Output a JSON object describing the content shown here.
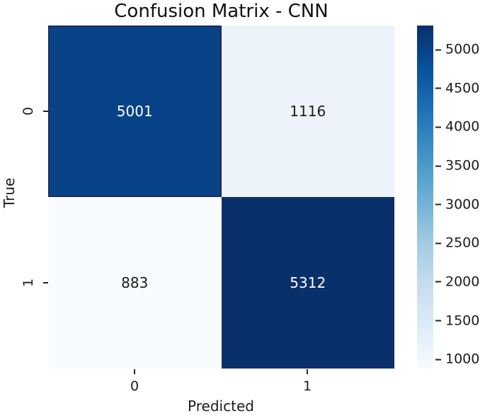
{
  "chart_data": {
    "type": "heatmap",
    "title": "Confusion Matrix - CNN",
    "xlabel": "Predicted",
    "ylabel": "True",
    "x_tick_labels": [
      "0",
      "1"
    ],
    "y_tick_labels": [
      "0",
      "1"
    ],
    "matrix": [
      [
        5001,
        1116
      ],
      [
        883,
        5312
      ]
    ],
    "vmin": 883,
    "vmax": 5312,
    "colormap_name": "Blues",
    "colormap_stops": [
      "#f7fbff",
      "#deebf7",
      "#c6dbef",
      "#9ecae1",
      "#6baed6",
      "#4292c6",
      "#2171b5",
      "#08519c",
      "#08306b"
    ],
    "cell_colors": [
      [
        "#084387",
        "#edf3fb"
      ],
      [
        "#f7fbff",
        "#08306b"
      ]
    ],
    "cell_text_colors": [
      [
        "#ffffff",
        "#1c1c1c"
      ],
      [
        "#1c1c1c",
        "#ffffff"
      ]
    ],
    "colorbar_ticks": [
      1000,
      1500,
      2000,
      2500,
      3000,
      3500,
      4000,
      4500,
      5000
    ],
    "legend_position": "right",
    "grid": false
  },
  "colors": {
    "background": "#ffffff",
    "title_text": "#111111",
    "tick_text": "#1c1c1c",
    "dark_cell_outline": "#1b2a5e"
  }
}
